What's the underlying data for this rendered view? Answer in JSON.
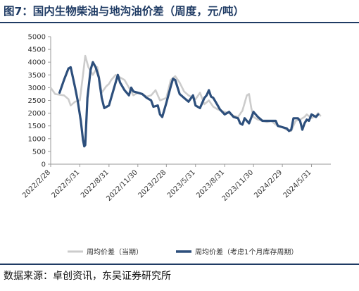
{
  "header": {
    "title": "图7：国内生物柴油与地沟油价差（周度，元/吨）"
  },
  "footer": {
    "source": "数据来源：卓创资讯，东吴证券研究所"
  },
  "chart_data": {
    "type": "line",
    "title": "",
    "xlabel": "",
    "ylabel": "",
    "ylim": [
      0,
      5000
    ],
    "yticks": [
      0,
      500,
      1000,
      1500,
      2000,
      2500,
      3000,
      3500,
      4000,
      4500,
      5000
    ],
    "xlim": [
      "2022-02-28",
      "2024-07-31"
    ],
    "xticks": [
      "2022/2/28",
      "2022/5/31",
      "2022/8/31",
      "2022/11/30",
      "2023/2/28",
      "2023/5/31",
      "2023/8/31",
      "2023/11/30",
      "2024/2/29",
      "2024/5/31"
    ],
    "grid": false,
    "legend": "bottom",
    "series": [
      {
        "name": "周均价差（当期）",
        "color": "#cccccc",
        "points": [
          [
            "2022-02-28",
            3000
          ],
          [
            "2022-03-14",
            2750
          ],
          [
            "2022-03-28",
            2720
          ],
          [
            "2022-04-11",
            2700
          ],
          [
            "2022-04-25",
            2550
          ],
          [
            "2022-05-02",
            2300
          ],
          [
            "2022-05-16",
            2450
          ],
          [
            "2022-05-31",
            2500
          ],
          [
            "2022-06-10",
            3500
          ],
          [
            "2022-06-17",
            4250
          ],
          [
            "2022-06-27",
            3800
          ],
          [
            "2022-07-11",
            3500
          ],
          [
            "2022-07-25",
            3800
          ],
          [
            "2022-08-08",
            2800
          ],
          [
            "2022-08-22",
            3050
          ],
          [
            "2022-08-31",
            3150
          ],
          [
            "2022-09-07",
            3300
          ],
          [
            "2022-09-21",
            3500
          ],
          [
            "2022-10-05",
            3400
          ],
          [
            "2022-10-19",
            3300
          ],
          [
            "2022-11-02",
            3000
          ],
          [
            "2022-11-16",
            2700
          ],
          [
            "2022-11-30",
            2800
          ],
          [
            "2022-12-14",
            2750
          ],
          [
            "2022-12-28",
            2650
          ],
          [
            "2023-01-11",
            2700
          ],
          [
            "2023-01-25",
            2900
          ],
          [
            "2023-02-08",
            2500
          ],
          [
            "2023-02-28",
            2600
          ],
          [
            "2023-03-14",
            3300
          ],
          [
            "2023-03-28",
            3450
          ],
          [
            "2023-04-11",
            3200
          ],
          [
            "2023-04-25",
            2850
          ],
          [
            "2023-05-09",
            2700
          ],
          [
            "2023-05-31",
            2550
          ],
          [
            "2023-06-14",
            2800
          ],
          [
            "2023-06-28",
            2350
          ],
          [
            "2023-07-12",
            2500
          ],
          [
            "2023-07-26",
            2250
          ],
          [
            "2023-08-09",
            2150
          ],
          [
            "2023-08-31",
            2050
          ],
          [
            "2023-09-14",
            2000
          ],
          [
            "2023-09-28",
            1900
          ],
          [
            "2023-10-12",
            1850
          ],
          [
            "2023-10-26",
            2100
          ],
          [
            "2023-11-09",
            2700
          ],
          [
            "2023-11-16",
            2750
          ],
          [
            "2023-11-23",
            2200
          ],
          [
            "2023-11-30",
            1850
          ],
          [
            "2023-12-14",
            1750
          ],
          [
            "2023-12-28",
            1700
          ],
          [
            "2024-01-11",
            1650
          ],
          [
            "2024-01-25",
            1700
          ],
          [
            "2024-02-08",
            1550
          ],
          [
            "2024-02-29",
            1450
          ],
          [
            "2024-03-14",
            1350
          ],
          [
            "2024-03-28",
            1300
          ],
          [
            "2024-04-11",
            1700
          ],
          [
            "2024-04-25",
            1750
          ],
          [
            "2024-05-09",
            1850
          ],
          [
            "2024-05-16",
            1950
          ],
          [
            "2024-05-31",
            1800
          ],
          [
            "2024-06-14",
            1900
          ],
          [
            "2024-06-21",
            2000
          ],
          [
            "2024-06-28",
            1900
          ]
        ]
      },
      {
        "name": "周均价差（考虑1个月库存周期）",
        "color": "#2d4f7c",
        "points": [
          [
            "2022-03-28",
            2800
          ],
          [
            "2022-04-11",
            3300
          ],
          [
            "2022-04-25",
            3750
          ],
          [
            "2022-05-02",
            3800
          ],
          [
            "2022-05-16",
            3000
          ],
          [
            "2022-05-24",
            2500
          ],
          [
            "2022-06-03",
            1700
          ],
          [
            "2022-06-10",
            950
          ],
          [
            "2022-06-14",
            700
          ],
          [
            "2022-06-17",
            750
          ],
          [
            "2022-06-24",
            2600
          ],
          [
            "2022-07-04",
            3700
          ],
          [
            "2022-07-11",
            4000
          ],
          [
            "2022-07-20",
            3800
          ],
          [
            "2022-07-30",
            3400
          ],
          [
            "2022-08-08",
            2600
          ],
          [
            "2022-08-16",
            2200
          ],
          [
            "2022-08-31",
            2300
          ],
          [
            "2022-09-14",
            2900
          ],
          [
            "2022-09-28",
            3500
          ],
          [
            "2022-10-05",
            3200
          ],
          [
            "2022-10-19",
            2900
          ],
          [
            "2022-11-02",
            2700
          ],
          [
            "2022-11-09",
            3000
          ],
          [
            "2022-11-16",
            2850
          ],
          [
            "2022-11-30",
            2800
          ],
          [
            "2022-12-14",
            2750
          ],
          [
            "2022-12-28",
            2600
          ],
          [
            "2023-01-11",
            2500
          ],
          [
            "2023-01-18",
            2250
          ],
          [
            "2023-02-01",
            2300
          ],
          [
            "2023-02-08",
            1950
          ],
          [
            "2023-02-15",
            1850
          ],
          [
            "2023-02-28",
            2400
          ],
          [
            "2023-03-14",
            3050
          ],
          [
            "2023-03-21",
            3350
          ],
          [
            "2023-03-28",
            3300
          ],
          [
            "2023-04-11",
            2750
          ],
          [
            "2023-04-25",
            2600
          ],
          [
            "2023-05-09",
            2450
          ],
          [
            "2023-05-23",
            2700
          ],
          [
            "2023-05-31",
            2300
          ],
          [
            "2023-06-14",
            2200
          ],
          [
            "2023-06-28",
            2600
          ],
          [
            "2023-07-05",
            2700
          ],
          [
            "2023-07-12",
            2900
          ],
          [
            "2023-07-19",
            2650
          ],
          [
            "2023-07-26",
            2600
          ],
          [
            "2023-08-09",
            2300
          ],
          [
            "2023-08-16",
            2150
          ],
          [
            "2023-08-31",
            1950
          ],
          [
            "2023-09-14",
            2050
          ],
          [
            "2023-09-28",
            1850
          ],
          [
            "2023-10-12",
            1800
          ],
          [
            "2023-10-19",
            1600
          ],
          [
            "2023-10-26",
            1550
          ],
          [
            "2023-11-02",
            1800
          ],
          [
            "2023-11-16",
            1600
          ],
          [
            "2023-11-30",
            2050
          ],
          [
            "2023-12-14",
            1850
          ],
          [
            "2023-12-28",
            1700
          ],
          [
            "2024-01-11",
            1700
          ],
          [
            "2024-01-25",
            1700
          ],
          [
            "2024-02-08",
            1700
          ],
          [
            "2024-02-15",
            1500
          ],
          [
            "2024-02-29",
            1450
          ],
          [
            "2024-03-14",
            1400
          ],
          [
            "2024-03-21",
            1300
          ],
          [
            "2024-03-28",
            1350
          ],
          [
            "2024-04-04",
            1800
          ],
          [
            "2024-04-18",
            1800
          ],
          [
            "2024-04-25",
            1700
          ],
          [
            "2024-05-02",
            1350
          ],
          [
            "2024-05-09",
            1600
          ],
          [
            "2024-05-16",
            1750
          ],
          [
            "2024-05-23",
            1700
          ],
          [
            "2024-05-31",
            1950
          ],
          [
            "2024-06-07",
            1900
          ],
          [
            "2024-06-14",
            1850
          ],
          [
            "2024-06-21",
            1950
          ]
        ]
      }
    ]
  }
}
